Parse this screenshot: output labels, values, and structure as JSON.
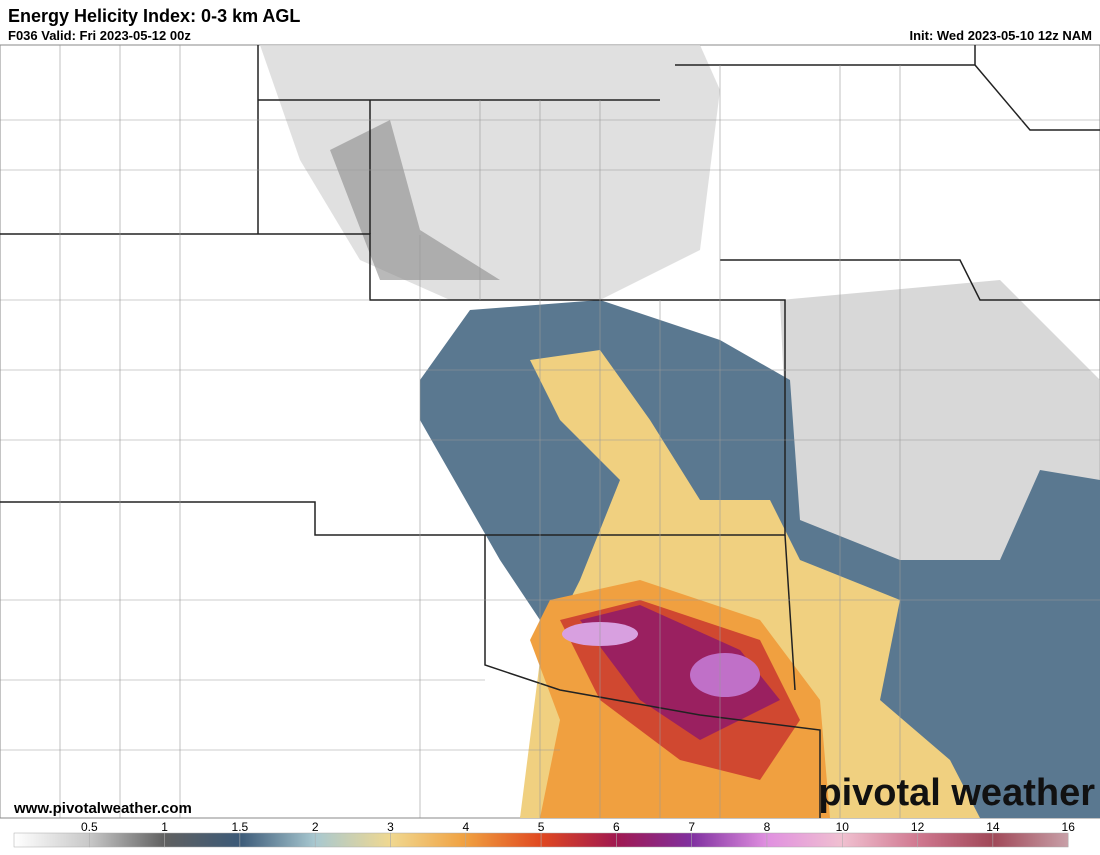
{
  "header": {
    "title": "Energy Helicity Index: 0-3 km AGL",
    "valid": "F036 Valid: Fri 2023-05-12 00z",
    "init": "Init: Wed 2023-05-10 12z NAM"
  },
  "footer": {
    "website": "www.pivotalweather.com",
    "logo": "pivotal weather"
  },
  "colorbar": {
    "ticks": [
      0.5,
      1,
      1.5,
      2,
      3,
      4,
      5,
      6,
      7,
      8,
      10,
      12,
      14,
      16
    ],
    "colors": [
      "#ffffff",
      "#c8c8c8",
      "#606060",
      "#3c5a78",
      "#a8c8d0",
      "#f0d890",
      "#f0a040",
      "#e04820",
      "#a01850",
      "#8030a0",
      "#e090e0",
      "#f0c0d0",
      "#d07890",
      "#a04858",
      "#c8a0a8"
    ]
  }
}
